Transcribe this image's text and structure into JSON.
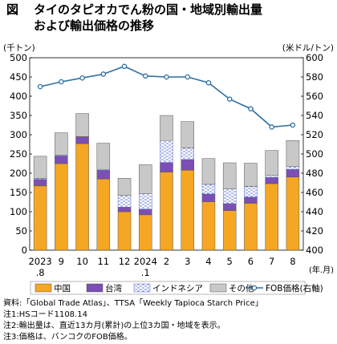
{
  "figure": {
    "label": "図",
    "title_line1": "タイのタピオカでん粉の国・地域別輸出量",
    "title_line2": "および輸出価格の推移"
  },
  "chart_data": {
    "type": "bar",
    "stacked": true,
    "title": "タイのタピオカでん粉の国・地域別輸出量および輸出価格の推移",
    "categories": [
      "2023.8",
      "9",
      "10",
      "11",
      "12",
      "2024.1",
      "2",
      "3",
      "4",
      "5",
      "6",
      "7",
      "8"
    ],
    "x_tick_top": [
      "2023",
      "9",
      "10",
      "11",
      "12",
      "2024",
      "2",
      "3",
      "4",
      "5",
      "6",
      "7",
      "8"
    ],
    "x_tick_bottom": [
      ".8",
      "",
      "",
      "",
      "",
      ".1",
      "",
      "",
      "",
      "",
      "",
      "",
      ""
    ],
    "x_unit": "(年.月)",
    "ylabel_left": "(千トン)",
    "ylabel_right": "(米ドル/トン)",
    "ylim_left": [
      0,
      500
    ],
    "ylim_right": [
      400,
      600
    ],
    "yticks_left": [
      0,
      50,
      100,
      150,
      200,
      250,
      300,
      350,
      400,
      450,
      500
    ],
    "yticks_right": [
      400,
      420,
      440,
      460,
      480,
      500,
      520,
      540,
      560,
      580,
      600
    ],
    "grid": false,
    "legend_position": "bottom",
    "series": [
      {
        "name": "中国",
        "axis": "left",
        "color": "#f5a623",
        "pattern": "solid",
        "values": [
          167,
          225,
          277,
          185,
          100,
          92,
          203,
          208,
          126,
          103,
          122,
          173,
          190
        ]
      },
      {
        "name": "台湾",
        "axis": "left",
        "color": "#7b4fb3",
        "pattern": "solid",
        "values": [
          17,
          20,
          18,
          23,
          12,
          15,
          25,
          28,
          20,
          18,
          16,
          16,
          20
        ]
      },
      {
        "name": "インドネシア",
        "axis": "left",
        "color": "#5a6fd0",
        "pattern": "dashed",
        "values": [
          2,
          2,
          0,
          2,
          30,
          40,
          57,
          30,
          25,
          38,
          28,
          5,
          7
        ]
      },
      {
        "name": "その他",
        "axis": "left",
        "color": "#c8c8c8",
        "pattern": "solid",
        "values": [
          58,
          58,
          60,
          68,
          45,
          75,
          65,
          68,
          67,
          68,
          60,
          65,
          68
        ]
      },
      {
        "name": "FOB価格(右軸)",
        "axis": "right",
        "type": "line",
        "color": "#2f6fa0",
        "values": [
          570,
          575,
          579,
          583,
          591,
          581,
          580,
          580,
          574,
          557,
          547,
          528,
          530
        ]
      }
    ]
  },
  "notes": {
    "source": "資料:「Global Trade Atlas」、TTSA「Weekly Tapioca Starch Price」",
    "note1": "注1:HSコード1108.14",
    "note2": "注2:輸出量は、直近13カ月(累計)の上位3カ国・地域を表示。",
    "note3": "注3:価格は、バンコクのFOB価格。"
  }
}
